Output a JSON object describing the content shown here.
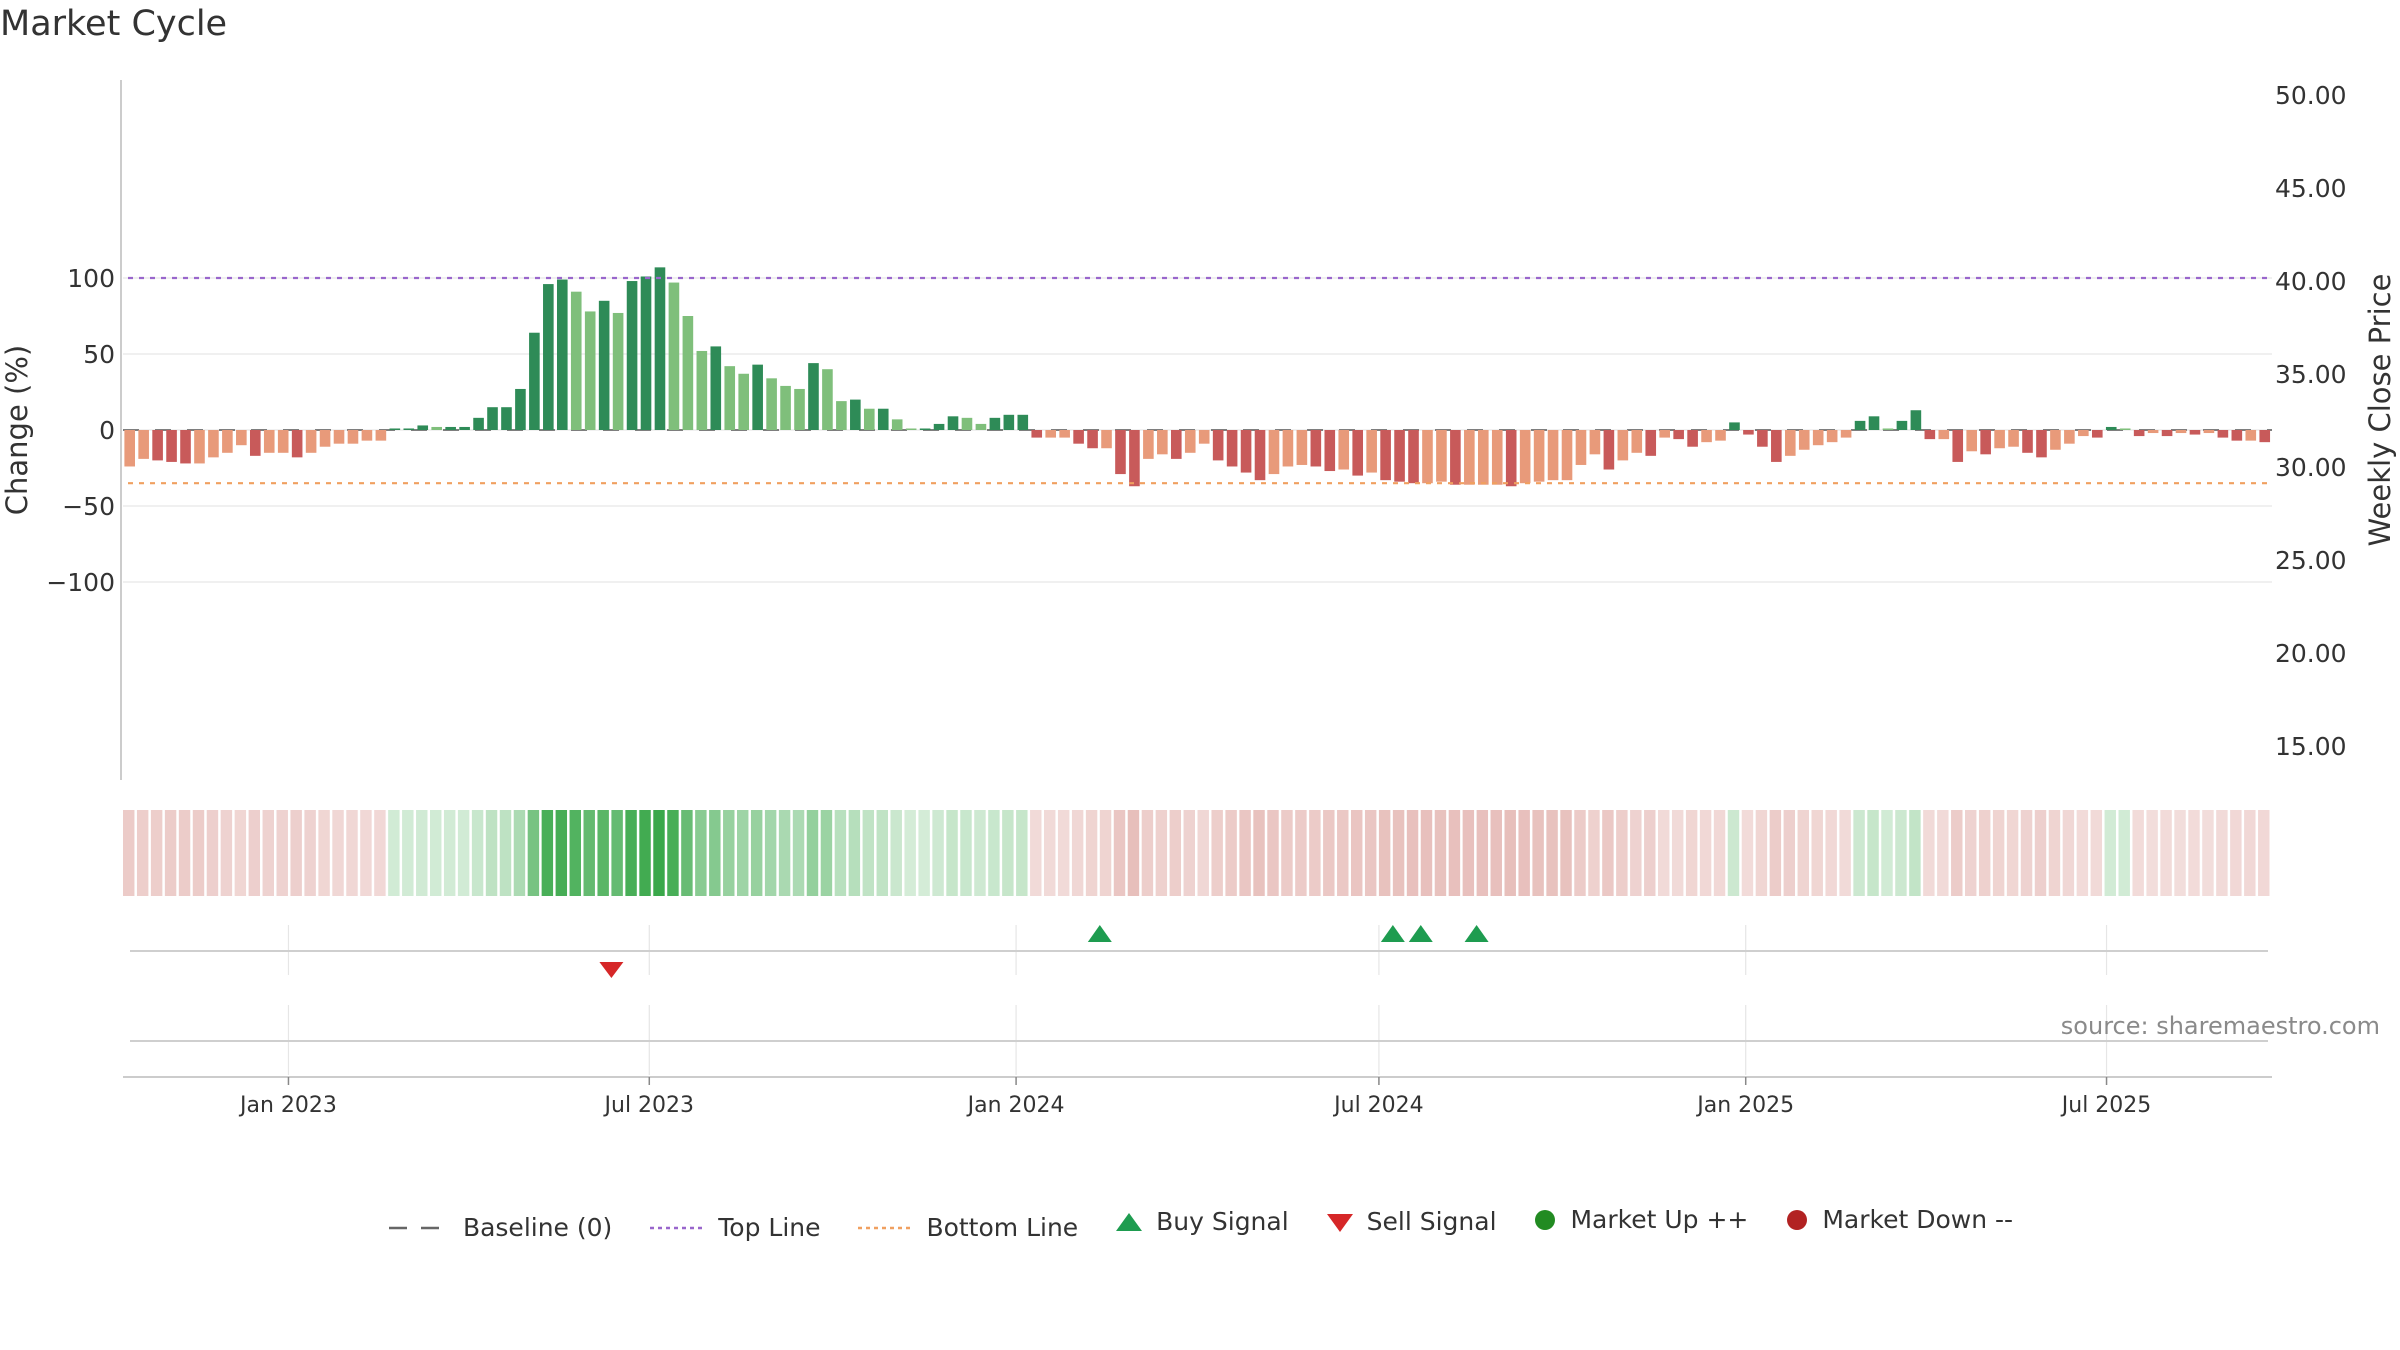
{
  "title": "Market Cycle",
  "source": "source: sharemaestro.com",
  "colors": {
    "strong_up": "#2e8b57",
    "mild_up": "#7fbf7b",
    "strong_down": "#c85a5a",
    "mild_down": "#e89a7a",
    "top_line": "#9966cc",
    "bottom_line": "#f0a060",
    "buy": "#1e9c50",
    "sell": "#d62728",
    "market_up": "#228b22",
    "market_down": "#b22222"
  },
  "legend": [
    {
      "label": "Baseline (0)",
      "icon": "dash-line"
    },
    {
      "label": "Top Line",
      "icon": "dotted-line"
    },
    {
      "label": "Bottom Line",
      "icon": "dotted-line"
    },
    {
      "label": "Buy Signal",
      "icon": "triangle-up"
    },
    {
      "label": "Sell Signal",
      "icon": "triangle-down"
    },
    {
      "label": "Market Up ++",
      "icon": "circle"
    },
    {
      "label": "Market Down --",
      "icon": "circle"
    }
  ],
  "chart_data": {
    "type": "bar",
    "ylabel": "Change (%)",
    "y2label": "Weekly Close Price",
    "ylim": [
      -115,
      115
    ],
    "y2lim": [
      13.8,
      51.3
    ],
    "yticks": [
      "100",
      "50",
      "0",
      "−50",
      "−100"
    ],
    "y2ticks": [
      "50.00",
      "45.00",
      "40.00",
      "35.00",
      "30.00",
      "25.00",
      "20.00",
      "15.00"
    ],
    "x_start": "2022-10-10",
    "x_end": "2025-09-22",
    "x_ticks": [
      {
        "label": "Jan 2023",
        "date": "2023-01-01"
      },
      {
        "label": "Jul 2023",
        "date": "2023-07-01"
      },
      {
        "label": "Jan 2024",
        "date": "2024-01-01"
      },
      {
        "label": "Jul 2024",
        "date": "2024-07-01"
      },
      {
        "label": "Jan 2025",
        "date": "2025-01-01"
      },
      {
        "label": "Jul 2025",
        "date": "2025-07-01"
      }
    ],
    "top_line": 100,
    "bottom_line": -35,
    "values": [
      -24,
      -19,
      -20,
      -21,
      -22,
      -22,
      -18,
      -15,
      -10,
      -17,
      -15,
      -15,
      -18,
      -15,
      -11,
      -9,
      -9,
      -7,
      -7,
      1,
      1,
      3,
      2,
      2,
      2,
      8,
      15,
      15,
      27,
      64,
      96,
      99,
      91,
      78,
      85,
      77,
      98,
      101,
      107,
      97,
      75,
      52,
      55,
      42,
      37,
      43,
      34,
      29,
      27,
      44,
      40,
      19,
      20,
      14,
      14,
      7,
      0,
      0,
      4,
      9,
      8,
      4,
      8,
      10,
      10,
      -5,
      -5,
      -5,
      -9,
      -12,
      -12,
      -29,
      -37,
      -19,
      -16,
      -19,
      -15,
      -9,
      -20,
      -24,
      -28,
      -33,
      -29,
      -24,
      -23,
      -24,
      -27,
      -26,
      -30,
      -28,
      -33,
      -34,
      -35,
      -35,
      -34,
      -36,
      -36,
      -36,
      -36,
      -37,
      -35,
      -34,
      -33,
      -33,
      -23,
      -16,
      -26,
      -20,
      -15,
      -17,
      -5,
      -6,
      -11,
      -8,
      -7,
      5,
      -3,
      -11,
      -21,
      -17,
      -13,
      -10,
      -8,
      -5,
      6,
      9,
      1,
      6,
      13,
      -6,
      -6,
      -21,
      -14,
      -16,
      -12,
      -11,
      -15,
      -18,
      -13,
      -9,
      -4,
      -5,
      2,
      1,
      -4,
      -2,
      -4,
      -2,
      -3,
      -2,
      -5,
      -7,
      -7,
      -8
    ],
    "signals": [
      {
        "type": "sell",
        "date": "2023-06-12"
      },
      {
        "type": "buy",
        "date": "2024-02-12"
      },
      {
        "type": "buy",
        "date": "2024-07-08"
      },
      {
        "type": "buy",
        "date": "2024-07-22"
      },
      {
        "type": "buy",
        "date": "2024-08-19"
      }
    ]
  }
}
